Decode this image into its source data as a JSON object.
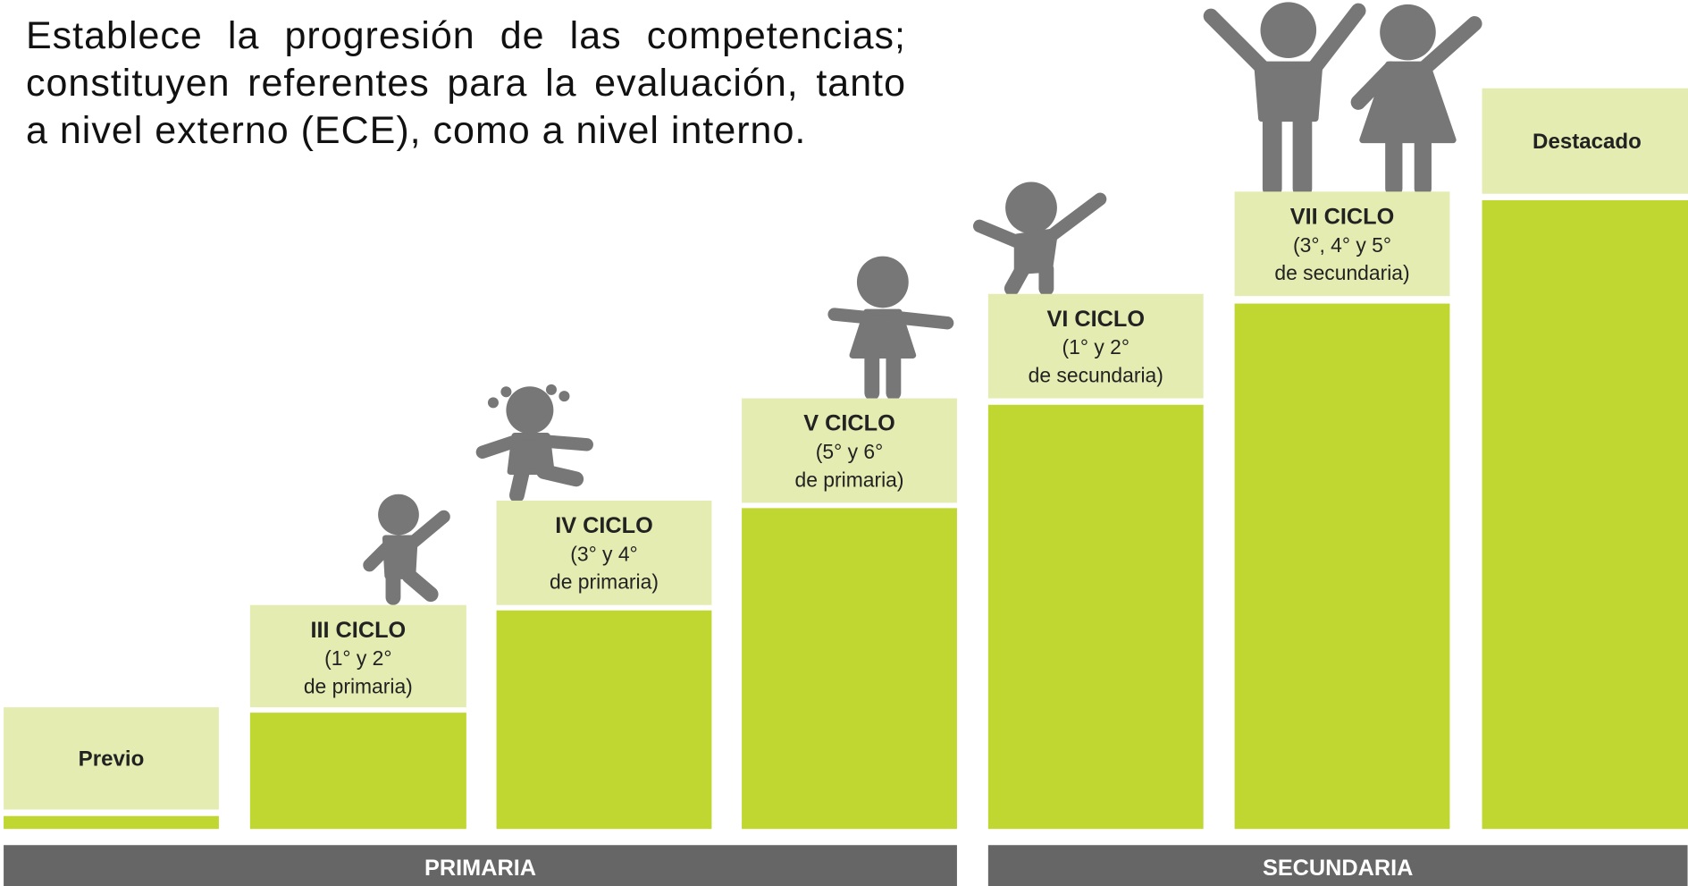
{
  "paragraph": "Establece la progresión de las competencias; constituyen referentes para la evaluación, tanto a nivel externo (ECE), como a nivel interno.",
  "steps": [
    {
      "title": "Previo"
    },
    {
      "title": "III CICLO",
      "lines": [
        "(1° y 2°",
        "de primaria)"
      ]
    },
    {
      "title": "IV CICLO",
      "lines": [
        "(3° y 4°",
        "de primaria)"
      ]
    },
    {
      "title": "V CICLO",
      "lines": [
        "(5° y 6°",
        "de primaria)"
      ]
    },
    {
      "title": "VI CICLO",
      "lines": [
        "(1° y 2°",
        "de secundaria)"
      ]
    },
    {
      "title": "VII CICLO",
      "lines": [
        "(3°, 4° y 5°",
        "de secundaria)"
      ]
    },
    {
      "title": "Destacado"
    }
  ],
  "footer": [
    "PRIMARIA",
    "SECUNDARIA"
  ]
}
